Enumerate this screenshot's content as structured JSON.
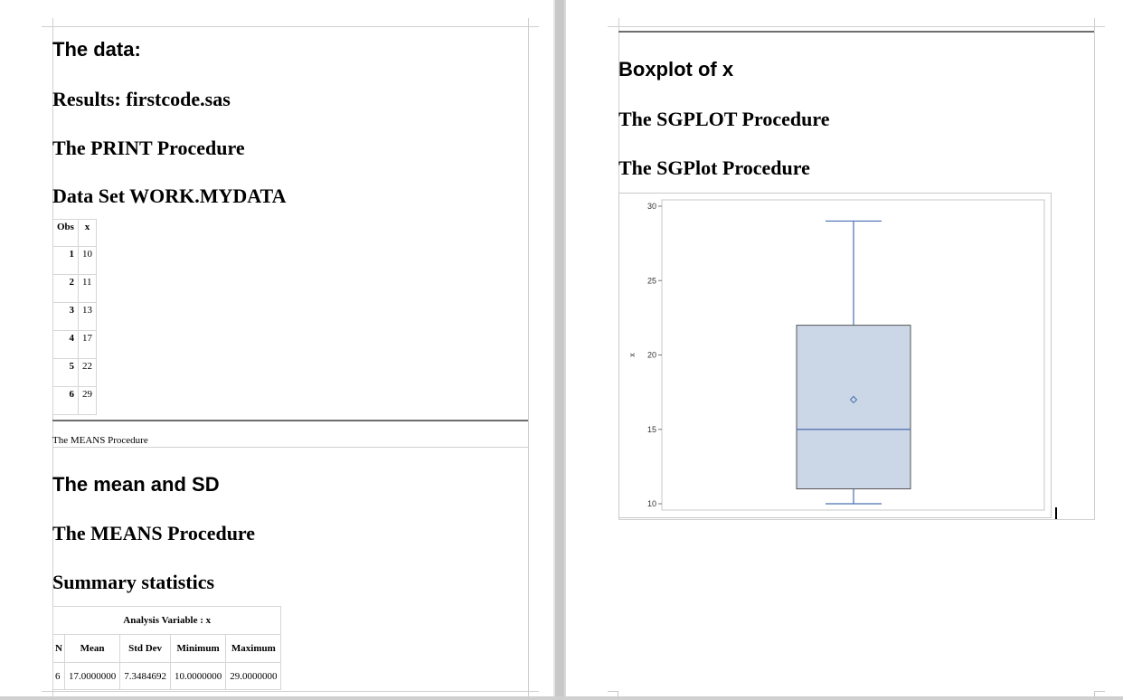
{
  "left_page": {
    "heading_data": "The data:",
    "results_title": "Results: firstcode.sas",
    "print_proc_title": "The PRINT Procedure",
    "dataset_title": "Data Set WORK.MYDATA",
    "print_table": {
      "headers": [
        "Obs",
        "x"
      ],
      "rows": [
        [
          "1",
          "10"
        ],
        [
          "2",
          "11"
        ],
        [
          "3",
          "13"
        ],
        [
          "4",
          "17"
        ],
        [
          "5",
          "22"
        ],
        [
          "6",
          "29"
        ]
      ]
    },
    "means_label": "The MEANS Procedure",
    "heading_mean_sd": "The mean and SD",
    "means_proc_title": "The MEANS Procedure",
    "summary_title": "Summary statistics",
    "summary_table": {
      "caption": "Analysis Variable : x",
      "headers": [
        "N",
        "Mean",
        "Std Dev",
        "Minimum",
        "Maximum"
      ],
      "row": [
        "6",
        "17.0000000",
        "7.3484692",
        "10.0000000",
        "29.0000000"
      ]
    }
  },
  "right_page": {
    "heading_boxplot": "Boxplot of x",
    "sgplot_proc_title": "The SGPLOT Procedure",
    "sgplot_title": "The SGPlot Procedure"
  },
  "chart_data": {
    "type": "box",
    "ylabel": "x",
    "ylim": [
      10,
      30
    ],
    "yticks": [
      10,
      15,
      20,
      25,
      30
    ],
    "series": [
      {
        "min": 10,
        "q1": 11,
        "median": 15,
        "q3": 22,
        "max": 29,
        "mean": 17
      }
    ],
    "box_fill": "#cbd6e6",
    "line_color": "#4a6fb0",
    "grid": false
  }
}
